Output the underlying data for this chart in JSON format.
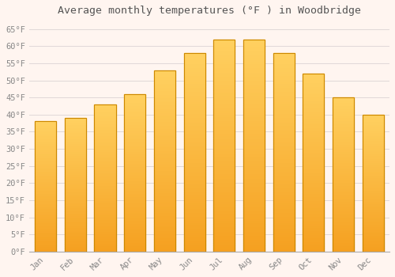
{
  "title": "Average monthly temperatures (°F ) in Woodbridge",
  "months": [
    "Jan",
    "Feb",
    "Mar",
    "Apr",
    "May",
    "Jun",
    "Jul",
    "Aug",
    "Sep",
    "Oct",
    "Nov",
    "Dec"
  ],
  "values": [
    38,
    39,
    43,
    46,
    53,
    58,
    62,
    62,
    58,
    52,
    45,
    40
  ],
  "bar_color_top": "#FFD060",
  "bar_color_bottom": "#F5A020",
  "bar_edge_color": "#CC8800",
  "background_color": "#FFF5F0",
  "plot_bg_color": "#FFF5F0",
  "grid_color": "#E0D8D8",
  "title_fontsize": 9.5,
  "tick_fontsize": 7.5,
  "ylim": [
    0,
    67
  ],
  "yticks": [
    0,
    5,
    10,
    15,
    20,
    25,
    30,
    35,
    40,
    45,
    50,
    55,
    60,
    65
  ],
  "font_family": "monospace"
}
